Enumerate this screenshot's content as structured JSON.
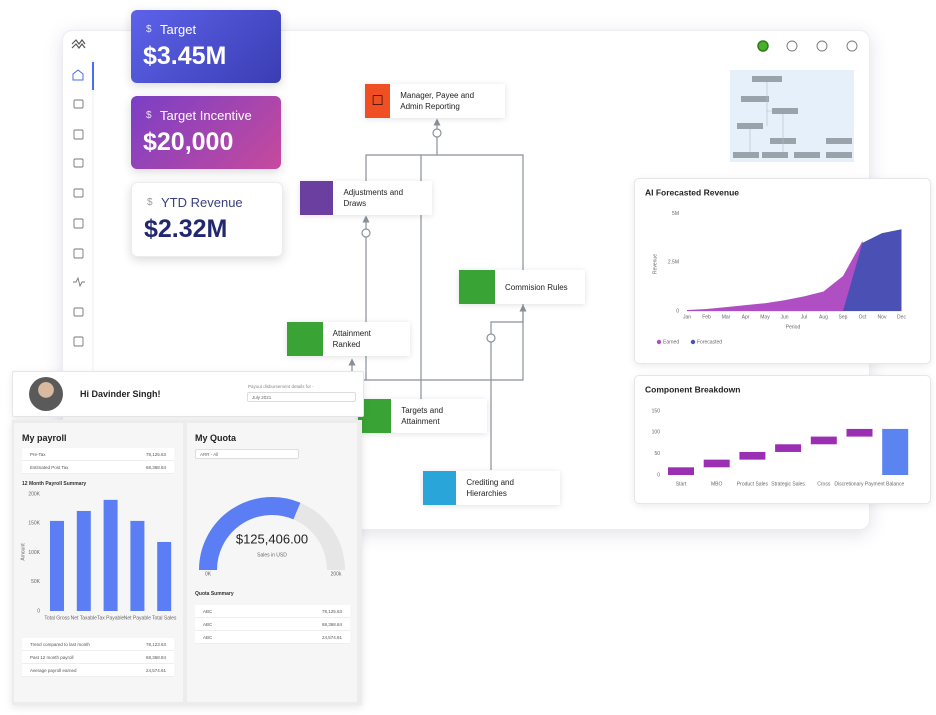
{
  "header": {
    "greeting": "Hi Davinder Singh!",
    "payout_label": "Payout disbursement details for -",
    "period": "July 2021"
  },
  "kpis": [
    {
      "symbol": "$",
      "label": "Target",
      "value": "$3.45M"
    },
    {
      "symbol": "$",
      "label": "Target Incentive",
      "value": "$20,000"
    },
    {
      "symbol": "$",
      "label": "YTD Revenue",
      "value": "$2.32M"
    }
  ],
  "flow_nodes": [
    {
      "label": "Manager, Payee and Admin Reporting"
    },
    {
      "label": "Adjustments and Draws"
    },
    {
      "label": "Commision Rules"
    },
    {
      "label": "Attainment Ranked"
    },
    {
      "label": "Targets and Attainment"
    },
    {
      "label": "Crediting and Hierarchies"
    }
  ],
  "payroll": {
    "title": "My payroll",
    "rows": [
      [
        "Pre-Tax",
        "78,125.63"
      ],
      [
        "Estimated Post Tax",
        "68,368.84"
      ]
    ],
    "summary_rows": [
      [
        "Trend compared to last month",
        "78,123.63"
      ],
      [
        "Past 12 month payroll",
        "68,368.84"
      ],
      [
        "Average payroll earned",
        "24,574.61"
      ]
    ]
  },
  "quota": {
    "title": "My Quota",
    "filter": "ARR - All",
    "summary_title": "Quota Summary",
    "rows": [
      [
        "ABC",
        "78,125.63"
      ],
      [
        "ABC",
        "68,368.84"
      ],
      [
        "ABC",
        "24,574.61"
      ]
    ]
  },
  "chart_data": [
    {
      "type": "area",
      "title": "AI Forecasted Revenue",
      "x_label": "Period",
      "y_label": "Revenue",
      "categories": [
        "Jan",
        "Feb",
        "Mar",
        "Apr",
        "May",
        "Jun",
        "Jul",
        "Aug",
        "Sep",
        "Oct",
        "Nov",
        "Dec"
      ],
      "series": [
        {
          "name": "Earned",
          "color": "#b04fc4",
          "values": [
            0.05,
            0.1,
            0.2,
            0.3,
            0.4,
            0.55,
            0.75,
            1.0,
            1.8,
            3.6,
            null,
            null
          ]
        },
        {
          "name": "Forecasted",
          "color": "#4a50b4",
          "values": [
            null,
            null,
            null,
            null,
            null,
            null,
            null,
            null,
            0,
            3.5,
            4.0,
            4.2
          ]
        }
      ],
      "ylim": [
        0,
        5.5
      ],
      "yticks": [
        {
          "value": 0,
          "label": "0"
        },
        {
          "value": 2.5,
          "label": "2.5M"
        },
        {
          "value": 5,
          "label": "5M"
        }
      ]
    },
    {
      "type": "waterfall",
      "title": "Component Breakdown",
      "categories": [
        "Start",
        "MBO",
        "Product Sales",
        "Strategic Sales",
        "Cross",
        "Discretionary Payment",
        "Balance"
      ],
      "values": [
        18,
        18,
        18,
        18,
        18,
        18,
        108
      ],
      "color": "#9b2fb3",
      "total_color": "#5b84f0",
      "ylim": [
        0,
        150
      ],
      "yticks": [
        0,
        50,
        100,
        150
      ]
    },
    {
      "type": "bar",
      "title": "12 Month Payroll Summary",
      "y_label": "Amount",
      "categories": [
        "Total Gross",
        "Net Taxable",
        "Tax Payable",
        "Net Payable",
        "Total Sales"
      ],
      "values": [
        154000,
        171000,
        190000,
        154000,
        118000
      ],
      "color": "#5b7ef5",
      "ylim": [
        0,
        200000
      ],
      "yticks": [
        {
          "value": 0,
          "label": "0"
        },
        {
          "value": 50000,
          "label": "50K"
        },
        {
          "value": 100000,
          "label": "100K"
        },
        {
          "value": 150000,
          "label": "150K"
        },
        {
          "value": 200000,
          "label": "200K"
        }
      ]
    },
    {
      "type": "gauge",
      "values": [
        125406
      ],
      "value_labels": [
        "$125,406.00"
      ],
      "subtitle": "Sales in USD",
      "color": "#5b7ef5",
      "ylim": [
        0,
        200000
      ],
      "yticks": [
        {
          "value": 0,
          "label": "0K"
        },
        {
          "value": 200000,
          "label": "200k"
        }
      ]
    }
  ]
}
